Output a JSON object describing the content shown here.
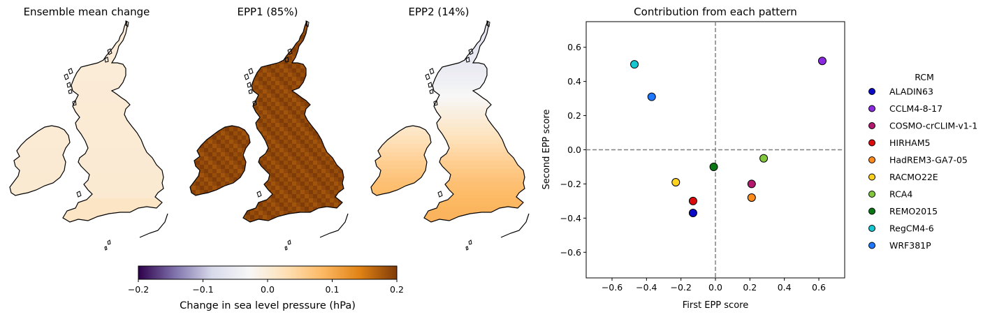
{
  "chart_data": [
    {
      "type": "heatmap",
      "panel": "map",
      "title": "Ensemble mean change",
      "field_level": 0.005
    },
    {
      "type": "heatmap",
      "panel": "map",
      "title": "EPP1 (85%)",
      "field_level": 0.19
    },
    {
      "type": "heatmap",
      "panel": "map",
      "title": "EPP2 (14%)",
      "field_level_north": -0.06,
      "field_level_south": 0.09
    },
    {
      "type": "colorbar",
      "label": "Change in sea level pressure (hPa)",
      "range": [
        -0.2,
        0.2
      ],
      "ticks": [
        -0.2,
        -0.1,
        0.0,
        0.1,
        0.2
      ],
      "tick_labels": [
        "−0.2",
        "−0.1",
        "0.0",
        "0.1",
        "0.2"
      ],
      "colormap": [
        "#2d004b",
        "#8073ac",
        "#d8daeb",
        "#f7f7f7",
        "#fee0b6",
        "#fdb863",
        "#e08214",
        "#7f3b08"
      ]
    },
    {
      "type": "scatter",
      "title": "Contribution from each pattern",
      "xlabel": "First EPP score",
      "ylabel": "Second EPP score",
      "xlim": [
        -0.75,
        0.75
      ],
      "ylim": [
        -0.75,
        0.75
      ],
      "xticks": [
        -0.6,
        -0.4,
        -0.2,
        0.0,
        0.2,
        0.4,
        0.6
      ],
      "yticks": [
        -0.6,
        -0.4,
        -0.2,
        0.0,
        0.2,
        0.4,
        0.6
      ],
      "xtick_labels": [
        "−0.6",
        "−0.4",
        "−0.2",
        "0.0",
        "0.2",
        "0.4",
        "0.6"
      ],
      "ytick_labels": [
        "−0.6",
        "−0.4",
        "−0.2",
        "0.0",
        "0.2",
        "0.4",
        "0.6"
      ],
      "reference_lines": {
        "x": 0,
        "y": 0,
        "style": "dashed",
        "color": "#808080"
      },
      "legend": {
        "title": "RCM",
        "position": "right-outside"
      },
      "points": [
        {
          "name": "ALADIN63",
          "x": -0.13,
          "y": -0.37,
          "color": "#0a0ac8"
        },
        {
          "name": "CCLM4-8-17",
          "x": 0.62,
          "y": 0.52,
          "color": "#8a2be2"
        },
        {
          "name": "COSMO-crCLIM-v1-1",
          "x": 0.21,
          "y": -0.2,
          "color": "#b4186e"
        },
        {
          "name": "HIRHAM5",
          "x": -0.13,
          "y": -0.3,
          "color": "#dc0a0a"
        },
        {
          "name": "HadREM3-GA7-05",
          "x": 0.21,
          "y": -0.28,
          "color": "#ff8c1a"
        },
        {
          "name": "RACMO22E",
          "x": -0.23,
          "y": -0.19,
          "color": "#ffd21e"
        },
        {
          "name": "RCA4",
          "x": 0.28,
          "y": -0.05,
          "color": "#82c83c"
        },
        {
          "name": "REMO2015",
          "x": -0.01,
          "y": -0.1,
          "color": "#0a7814"
        },
        {
          "name": "RegCM4-6",
          "x": -0.47,
          "y": 0.5,
          "color": "#14c8d2"
        },
        {
          "name": "WRF381P",
          "x": -0.37,
          "y": 0.31,
          "color": "#1e78ff"
        }
      ]
    }
  ]
}
